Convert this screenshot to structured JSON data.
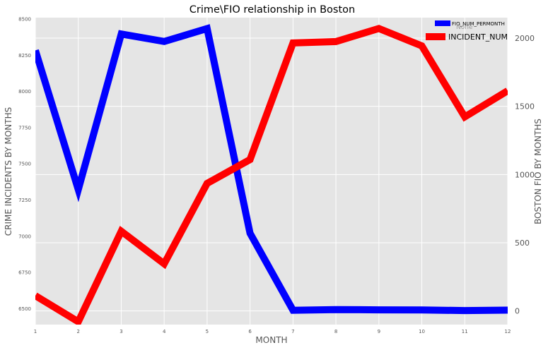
{
  "chart_data": {
    "type": "line",
    "title": "Crime\\FIO relationship in Boston",
    "xlabel": "MONTH",
    "ylabel_left": "CRIME INCIDENTS BY MONTHS",
    "ylabel_right": "BOSTON FIO BY MONTHS",
    "x": [
      1,
      2,
      3,
      4,
      5,
      6,
      7,
      8,
      9,
      10,
      11,
      12
    ],
    "x_ticks": [
      "1",
      "2",
      "3",
      "4",
      "5",
      "6",
      "7",
      "8",
      "9",
      "10",
      "11",
      "12"
    ],
    "xlim": [
      1,
      12
    ],
    "ylim_left": [
      6390,
      8510
    ],
    "ylim_right": [
      -100,
      2150
    ],
    "y_ticks_left": [
      6500,
      6750,
      7000,
      7250,
      7500,
      7750,
      8000,
      8250,
      8500
    ],
    "y_ticks_right": [
      0,
      500,
      1000,
      1500,
      2000
    ],
    "grid": true,
    "legend_position": "top-right",
    "series": [
      {
        "name": "FIO_NUM_PERMONTH",
        "axis": "right",
        "color": "#0000ff",
        "values": [
          1910,
          890,
          2030,
          1975,
          2070,
          570,
          5,
          10,
          8,
          7,
          3,
          6
        ]
      },
      {
        "name": "INCIDENT_NUM",
        "axis": "left",
        "color": "#ff0000",
        "values": [
          6590,
          6410,
          7035,
          6810,
          7365,
          7530,
          8335,
          8345,
          8435,
          8315,
          7825,
          8005
        ]
      }
    ],
    "legend": {
      "small_entry": "FIO_NUM_PERMONTH",
      "ghost_title": "None",
      "big_entry": "INCIDENT_NUM"
    }
  }
}
